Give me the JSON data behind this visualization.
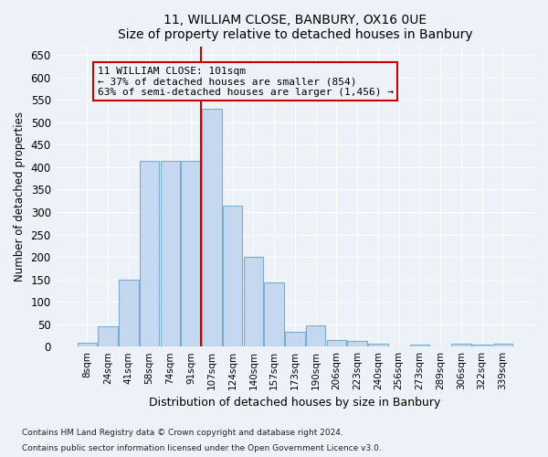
{
  "title1": "11, WILLIAM CLOSE, BANBURY, OX16 0UE",
  "title2": "Size of property relative to detached houses in Banbury",
  "xlabel": "Distribution of detached houses by size in Banbury",
  "ylabel": "Number of detached properties",
  "categories": [
    "8sqm",
    "24sqm",
    "41sqm",
    "58sqm",
    "74sqm",
    "91sqm",
    "107sqm",
    "124sqm",
    "140sqm",
    "157sqm",
    "173sqm",
    "190sqm",
    "206sqm",
    "223sqm",
    "240sqm",
    "256sqm",
    "273sqm",
    "289sqm",
    "306sqm",
    "322sqm",
    "339sqm"
  ],
  "values": [
    8,
    45,
    150,
    415,
    415,
    415,
    530,
    315,
    200,
    143,
    33,
    48,
    14,
    12,
    7,
    0,
    5,
    0,
    6,
    5,
    6
  ],
  "bar_color": "#c5d8ef",
  "bar_edge_color": "#7aadd4",
  "vline_x_index": 6,
  "vline_color": "#cc0000",
  "annotation_lines": [
    "11 WILLIAM CLOSE: 101sqm",
    "← 37% of detached houses are smaller (854)",
    "63% of semi-detached houses are larger (1,456) →"
  ],
  "ylim": [
    0,
    670
  ],
  "yticks": [
    0,
    50,
    100,
    150,
    200,
    250,
    300,
    350,
    400,
    450,
    500,
    550,
    600,
    650
  ],
  "footnote1": "Contains HM Land Registry data © Crown copyright and database right 2024.",
  "footnote2": "Contains public sector information licensed under the Open Government Licence v3.0.",
  "bg_color": "#edf2f9",
  "grid_color": "#ffffff"
}
